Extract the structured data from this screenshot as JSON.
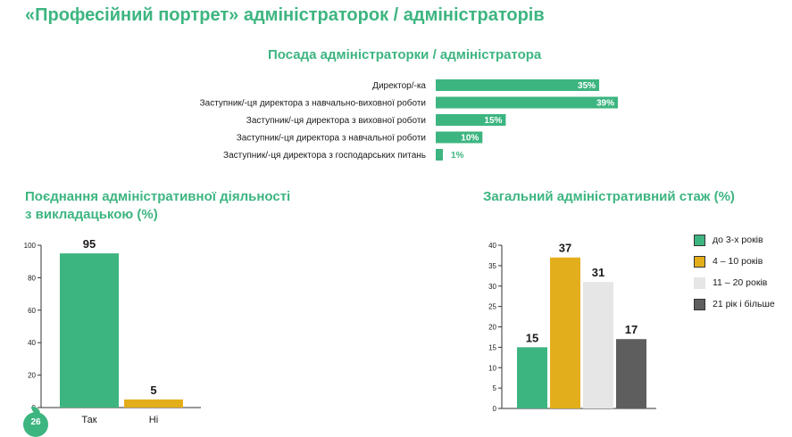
{
  "page": {
    "title": "«Професійний портрет» адміністраторок / адміністраторів",
    "page_number": "26"
  },
  "colors": {
    "accent": "#3db580",
    "yellow": "#e3ae1b",
    "light_gray": "#e6e6e6",
    "dark_gray": "#5e5e5e"
  },
  "chart_data": [
    {
      "type": "bar",
      "orientation": "horizontal",
      "title": "Посада адміністраторки / адміністратора",
      "categories": [
        "Директор/-ка",
        "Заступник/-ця директора з навчально-виховної роботи",
        "Заступник/-ця директора з виховної роботи",
        "Заступник/-ця директора з навчальної роботи",
        "Заступник/-ця директора з господарських питань"
      ],
      "values": [
        35,
        39,
        15,
        10,
        1
      ],
      "value_labels": [
        "35%",
        "39%",
        "15%",
        "10%",
        "1%"
      ],
      "xlim": [
        0,
        39
      ]
    },
    {
      "type": "bar",
      "title_lines": [
        "Поєднання адміністративної діяльності",
        "з викладацькою (%)"
      ],
      "categories": [
        "Так",
        "Ні"
      ],
      "values": [
        95,
        5
      ],
      "value_labels": [
        "95",
        "5"
      ],
      "ylim": [
        0,
        100
      ],
      "yticks": [
        0,
        20,
        40,
        60,
        80,
        100
      ],
      "yticklabels": [
        "0",
        "20",
        "40",
        "60",
        "80",
        "100"
      ]
    },
    {
      "type": "bar",
      "title": "Загальний адміністративний стаж (%)",
      "categories": [
        "до 3-х років",
        "4 – 10 років",
        "11 – 20 років",
        "21 рік і більше"
      ],
      "values": [
        15,
        37,
        31,
        17
      ],
      "value_labels": [
        "15",
        "37",
        "31",
        "17"
      ],
      "ylim": [
        0,
        40
      ],
      "yticks": [
        0,
        5,
        10,
        15,
        20,
        25,
        30,
        35,
        40
      ],
      "yticklabels": [
        "0",
        "5",
        "10",
        "15",
        "20",
        "25",
        "30",
        "35",
        "40"
      ],
      "legend": {
        "position": "right",
        "entries": [
          "до 3-х років",
          "4 – 10 років",
          "11 – 20 років",
          "21 рік і більше"
        ]
      }
    }
  ]
}
